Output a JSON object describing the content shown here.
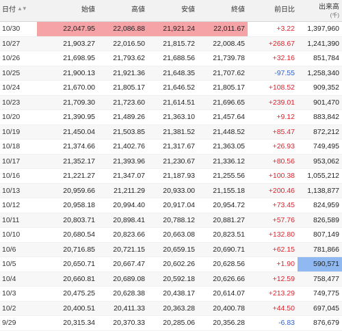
{
  "header": {
    "date": "日付",
    "open": "始値",
    "high": "高値",
    "low": "安値",
    "close": "終値",
    "change": "前日比",
    "volume": "出来高",
    "volume_unit": "(千)"
  },
  "rows": [
    {
      "date": "10/30",
      "open": "22,047.95",
      "high": "22,086.88",
      "low": "21,921.24",
      "close": "22,011.67",
      "change": "+3.22",
      "volume": "1,397,960",
      "dir": "pos",
      "hl": [
        "open",
        "high",
        "low",
        "close"
      ]
    },
    {
      "date": "10/27",
      "open": "21,903.27",
      "high": "22,016.50",
      "low": "21,815.72",
      "close": "22,008.45",
      "change": "+268.67",
      "volume": "1,241,390",
      "dir": "pos",
      "hl": []
    },
    {
      "date": "10/26",
      "open": "21,698.95",
      "high": "21,793.62",
      "low": "21,688.56",
      "close": "21,739.78",
      "change": "+32.16",
      "volume": "851,784",
      "dir": "pos",
      "hl": []
    },
    {
      "date": "10/25",
      "open": "21,900.13",
      "high": "21,921.36",
      "low": "21,648.35",
      "close": "21,707.62",
      "change": "-97.55",
      "volume": "1,258,340",
      "dir": "neg",
      "hl": []
    },
    {
      "date": "10/24",
      "open": "21,670.00",
      "high": "21,805.17",
      "low": "21,646.52",
      "close": "21,805.17",
      "change": "+108.52",
      "volume": "909,352",
      "dir": "pos",
      "hl": []
    },
    {
      "date": "10/23",
      "open": "21,709.30",
      "high": "21,723.60",
      "low": "21,614.51",
      "close": "21,696.65",
      "change": "+239.01",
      "volume": "901,470",
      "dir": "pos",
      "hl": []
    },
    {
      "date": "10/20",
      "open": "21,390.95",
      "high": "21,489.26",
      "low": "21,363.10",
      "close": "21,457.64",
      "change": "+9.12",
      "volume": "883,842",
      "dir": "pos",
      "hl": []
    },
    {
      "date": "10/19",
      "open": "21,450.04",
      "high": "21,503.85",
      "low": "21,381.52",
      "close": "21,448.52",
      "change": "+85.47",
      "volume": "872,212",
      "dir": "pos",
      "hl": []
    },
    {
      "date": "10/18",
      "open": "21,374.66",
      "high": "21,402.76",
      "low": "21,317.67",
      "close": "21,363.05",
      "change": "+26.93",
      "volume": "749,495",
      "dir": "pos",
      "hl": []
    },
    {
      "date": "10/17",
      "open": "21,352.17",
      "high": "21,393.96",
      "low": "21,230.67",
      "close": "21,336.12",
      "change": "+80.56",
      "volume": "953,062",
      "dir": "pos",
      "hl": []
    },
    {
      "date": "10/16",
      "open": "21,221.27",
      "high": "21,347.07",
      "low": "21,187.93",
      "close": "21,255.56",
      "change": "+100.38",
      "volume": "1,055,212",
      "dir": "pos",
      "hl": []
    },
    {
      "date": "10/13",
      "open": "20,959.66",
      "high": "21,211.29",
      "low": "20,933.00",
      "close": "21,155.18",
      "change": "+200.46",
      "volume": "1,138,877",
      "dir": "pos",
      "hl": []
    },
    {
      "date": "10/12",
      "open": "20,958.18",
      "high": "20,994.40",
      "low": "20,917.04",
      "close": "20,954.72",
      "change": "+73.45",
      "volume": "824,959",
      "dir": "pos",
      "hl": []
    },
    {
      "date": "10/11",
      "open": "20,803.71",
      "high": "20,898.41",
      "low": "20,788.12",
      "close": "20,881.27",
      "change": "+57.76",
      "volume": "826,589",
      "dir": "pos",
      "hl": []
    },
    {
      "date": "10/10",
      "open": "20,680.54",
      "high": "20,823.66",
      "low": "20,663.08",
      "close": "20,823.51",
      "change": "+132.80",
      "volume": "807,149",
      "dir": "pos",
      "hl": []
    },
    {
      "date": "10/6",
      "open": "20,716.85",
      "high": "20,721.15",
      "low": "20,659.15",
      "close": "20,690.71",
      "change": "+62.15",
      "volume": "781,866",
      "dir": "pos",
      "hl": []
    },
    {
      "date": "10/5",
      "open": "20,650.71",
      "high": "20,667.47",
      "low": "20,602.26",
      "close": "20,628.56",
      "change": "+1.90",
      "volume": "590,571",
      "dir": "pos",
      "hl": [
        "volume"
      ]
    },
    {
      "date": "10/4",
      "open": "20,660.81",
      "high": "20,689.08",
      "low": "20,592.18",
      "close": "20,626.66",
      "change": "+12.59",
      "volume": "758,477",
      "dir": "pos",
      "hl": []
    },
    {
      "date": "10/3",
      "open": "20,475.25",
      "high": "20,628.38",
      "low": "20,438.17",
      "close": "20,614.07",
      "change": "+213.29",
      "volume": "749,775",
      "dir": "pos",
      "hl": []
    },
    {
      "date": "10/2",
      "open": "20,400.51",
      "high": "20,411.33",
      "low": "20,363.28",
      "close": "20,400.78",
      "change": "+44.50",
      "volume": "697,045",
      "dir": "pos",
      "hl": []
    },
    {
      "date": "9/29",
      "open": "20,315.34",
      "high": "20,370.33",
      "low": "20,285.06",
      "close": "20,356.28",
      "change": "-6.83",
      "volume": "876,679",
      "dir": "neg",
      "hl": []
    }
  ]
}
